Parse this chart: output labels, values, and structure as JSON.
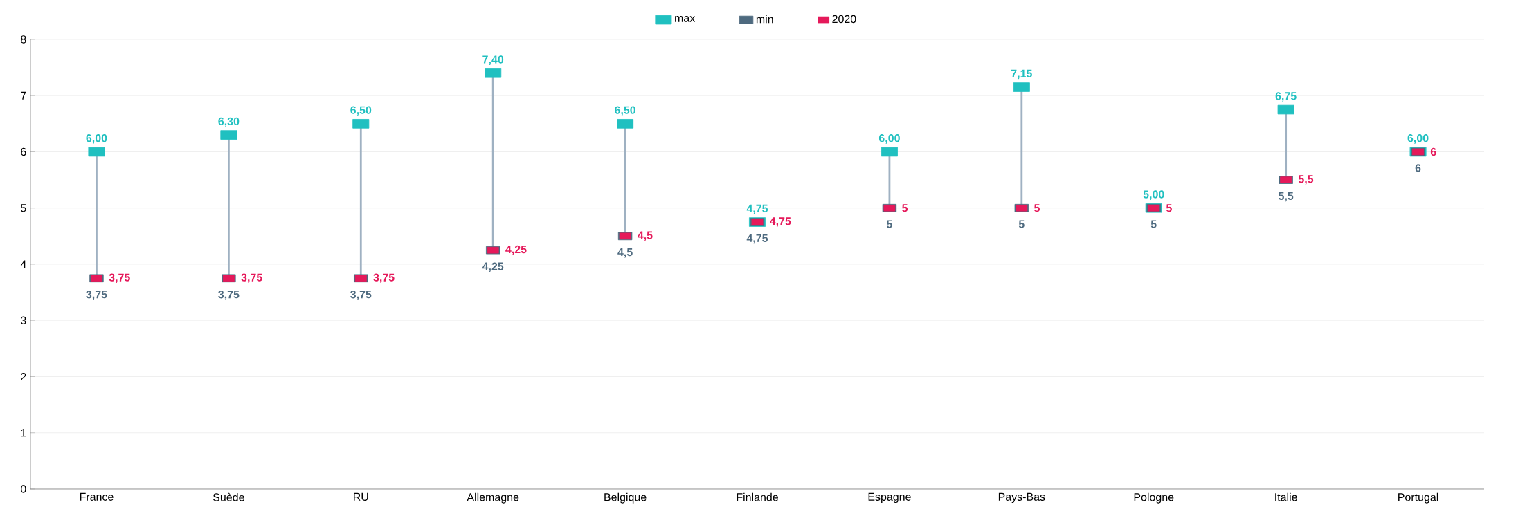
{
  "chart_data": {
    "type": "scatter",
    "categories": [
      "France",
      "Suède",
      "RU",
      "Allemagne",
      "Belgique",
      "Finlande",
      "Espagne",
      "Pays-Bas",
      "Pologne",
      "Italie",
      "Portugal"
    ],
    "series": [
      {
        "name": "max",
        "color": "#20c0c0",
        "values": [
          6.0,
          6.3,
          6.5,
          7.4,
          6.5,
          4.75,
          6.0,
          7.15,
          5.0,
          6.75,
          6.0
        ],
        "value_labels": [
          "6,00",
          "6,30",
          "6,50",
          "7,40",
          "6,50",
          "4,75",
          "6,00",
          "7,15",
          "5,00",
          "6,75",
          "6,00"
        ]
      },
      {
        "name": "min",
        "color": "#4e6a7f",
        "values": [
          3.75,
          3.75,
          3.75,
          4.25,
          4.5,
          4.75,
          5,
          5,
          5,
          5.5,
          6
        ],
        "value_labels": [
          "3,75",
          "3,75",
          "3,75",
          "4,25",
          "4,5",
          "4,75",
          "5",
          "5",
          "5",
          "5,5",
          "6"
        ]
      },
      {
        "name": "2020",
        "color": "#e5195a",
        "values": [
          3.75,
          3.75,
          3.75,
          4.25,
          4.5,
          4.75,
          5,
          5,
          5,
          5.5,
          6
        ],
        "value_labels": [
          "3,75",
          "3,75",
          "3,75",
          "4,25",
          "4,5",
          "4,75",
          "5",
          "5",
          "5",
          "5,5",
          "6"
        ]
      }
    ],
    "ylim": [
      0,
      8
    ],
    "yticks": [
      0,
      1,
      2,
      3,
      4,
      5,
      6,
      7,
      8
    ],
    "grid": "y",
    "legend": "top"
  }
}
